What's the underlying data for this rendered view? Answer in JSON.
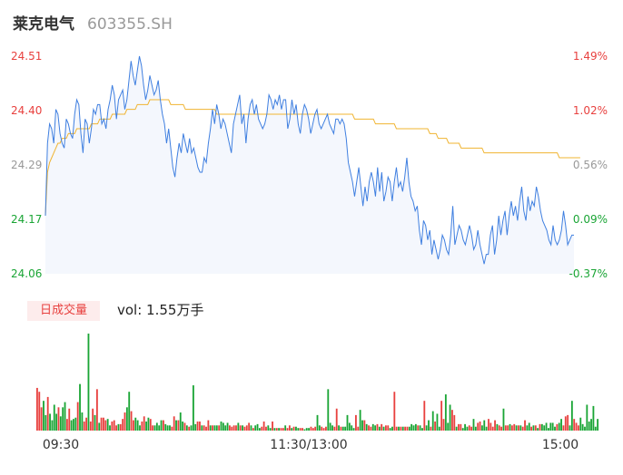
{
  "header": {
    "name": "莱克电气",
    "code": "603355.SH"
  },
  "colors": {
    "up": "#e8413f",
    "down": "#1aa535",
    "neutral": "#999999",
    "price": "#3f7fe0",
    "avg": "#f0b431"
  },
  "volume": {
    "badge": "日成交量",
    "text": "vol: 1.55万手"
  },
  "chart_data": [
    {
      "type": "line",
      "title": "",
      "y_left_ticks": [
        "24.51",
        "24.40",
        "24.29",
        "24.17",
        "24.06"
      ],
      "y_right_ticks": [
        "1.49%",
        "1.02%",
        "0.56%",
        "0.09%",
        "-0.37%"
      ],
      "x_ticks": [
        "09:30",
        "11:30/13:00",
        "15:00"
      ],
      "ylim": [
        24.06,
        24.51
      ],
      "series": [
        {
          "role": "price",
          "values": [
            24.18,
            24.33,
            24.37,
            24.36,
            24.33,
            24.4,
            24.39,
            24.35,
            24.33,
            24.32,
            24.38,
            24.37,
            24.35,
            24.34,
            24.39,
            24.42,
            24.41,
            24.35,
            24.31,
            24.38,
            24.37,
            24.33,
            24.36,
            24.4,
            24.39,
            24.41,
            24.41,
            24.37,
            24.38,
            24.36,
            24.4,
            24.42,
            24.45,
            24.43,
            24.38,
            24.42,
            24.43,
            24.44,
            24.4,
            24.42,
            24.46,
            24.5,
            24.47,
            24.45,
            24.48,
            24.51,
            24.49,
            24.45,
            24.42,
            24.44,
            24.47,
            24.45,
            24.43,
            24.44,
            24.46,
            24.42,
            24.39,
            24.37,
            24.33,
            24.36,
            24.32,
            24.28,
            24.26,
            24.3,
            24.33,
            24.31,
            24.35,
            24.33,
            24.31,
            24.34,
            24.31,
            24.32,
            24.3,
            24.28,
            24.27,
            24.27,
            24.3,
            24.29,
            24.33,
            24.36,
            24.4,
            24.37,
            24.41,
            24.39,
            24.36,
            24.38,
            24.37,
            24.35,
            24.33,
            24.31,
            24.37,
            24.39,
            24.41,
            24.43,
            24.37,
            24.39,
            24.33,
            24.38,
            24.41,
            24.42,
            24.39,
            24.41,
            24.38,
            24.37,
            24.36,
            24.37,
            24.39,
            24.43,
            24.42,
            24.4,
            24.42,
            24.41,
            24.43,
            24.4,
            24.42,
            24.42,
            24.36,
            24.38,
            24.42,
            24.39,
            24.41,
            24.37,
            24.35,
            24.39,
            24.41,
            24.4,
            24.38,
            24.35,
            24.37,
            24.39,
            24.4,
            24.37,
            24.36,
            24.37,
            24.38,
            24.39,
            24.37,
            24.36,
            24.35,
            24.38,
            24.38,
            24.37,
            24.38,
            24.37,
            24.34,
            24.29,
            24.27,
            24.25,
            24.22,
            24.25,
            24.28,
            24.24,
            24.2,
            24.24,
            24.21,
            24.25,
            24.27,
            24.25,
            24.22,
            24.28,
            24.23,
            24.27,
            24.21,
            24.23,
            24.26,
            24.25,
            24.21,
            24.25,
            24.28,
            24.24,
            24.25,
            24.23,
            24.26,
            24.3,
            24.25,
            24.22,
            24.21,
            24.19,
            24.2,
            24.15,
            24.12,
            24.17,
            24.16,
            24.13,
            24.15,
            24.1,
            24.13,
            24.11,
            24.09,
            24.11,
            24.14,
            24.13,
            24.11,
            24.1,
            24.14,
            24.2,
            24.12,
            24.14,
            24.16,
            24.15,
            24.13,
            24.12,
            24.14,
            24.16,
            24.14,
            24.11,
            24.12,
            24.15,
            24.12,
            24.1,
            24.08,
            24.1,
            24.1,
            24.14,
            24.16,
            24.1,
            24.13,
            24.18,
            24.14,
            24.17,
            24.19,
            24.14,
            24.18,
            24.21,
            24.18,
            24.2,
            24.17,
            24.21,
            24.24,
            24.19,
            24.17,
            24.22,
            24.19,
            24.21,
            24.2,
            24.24,
            24.22,
            24.19,
            24.17,
            24.16,
            24.15,
            24.13,
            24.12,
            24.16,
            24.13,
            24.12,
            24.13,
            24.15,
            24.19,
            24.16,
            24.12,
            24.13,
            24.14,
            24.14
          ]
        },
        {
          "role": "average",
          "values": [
            24.18,
            24.27,
            24.29,
            24.3,
            24.31,
            24.32,
            24.33,
            24.33,
            24.34,
            24.34,
            24.34,
            24.35,
            24.35,
            24.35,
            24.35,
            24.36,
            24.36,
            24.36,
            24.36,
            24.36,
            24.36,
            24.36,
            24.37,
            24.37,
            24.37,
            24.37,
            24.38,
            24.38,
            24.38,
            24.38,
            24.38,
            24.38,
            24.39,
            24.39,
            24.39,
            24.39,
            24.39,
            24.39,
            24.39,
            24.4,
            24.4,
            24.4,
            24.4,
            24.4,
            24.41,
            24.41,
            24.41,
            24.41,
            24.41,
            24.41,
            24.42,
            24.42,
            24.42,
            24.42,
            24.42,
            24.42,
            24.42,
            24.42,
            24.42,
            24.42,
            24.41,
            24.41,
            24.41,
            24.41,
            24.41,
            24.41,
            24.41,
            24.4,
            24.4,
            24.4,
            24.4,
            24.4,
            24.4,
            24.4,
            24.4,
            24.4,
            24.4,
            24.4,
            24.4,
            24.4,
            24.4,
            24.4,
            24.39,
            24.39,
            24.39,
            24.39,
            24.39,
            24.39,
            24.39,
            24.39,
            24.39,
            24.39,
            24.39,
            24.39,
            24.39,
            24.39,
            24.39,
            24.39,
            24.39,
            24.39,
            24.39,
            24.39,
            24.39,
            24.39,
            24.39,
            24.39,
            24.39,
            24.39,
            24.39,
            24.39,
            24.39,
            24.39,
            24.39,
            24.39,
            24.39,
            24.39,
            24.39,
            24.39,
            24.39,
            24.39,
            24.39,
            24.39,
            24.39,
            24.39,
            24.39,
            24.39,
            24.39,
            24.39,
            24.39,
            24.39,
            24.39,
            24.39,
            24.39,
            24.39,
            24.39,
            24.39,
            24.39,
            24.39,
            24.39,
            24.39,
            24.39,
            24.39,
            24.39,
            24.39,
            24.39,
            24.39,
            24.39,
            24.39,
            24.38,
            24.38,
            24.38,
            24.38,
            24.38,
            24.38,
            24.38,
            24.38,
            24.38,
            24.38,
            24.37,
            24.37,
            24.37,
            24.37,
            24.37,
            24.37,
            24.37,
            24.37,
            24.37,
            24.37,
            24.36,
            24.36,
            24.36,
            24.36,
            24.36,
            24.36,
            24.36,
            24.36,
            24.36,
            24.36,
            24.36,
            24.36,
            24.36,
            24.36,
            24.36,
            24.36,
            24.35,
            24.35,
            24.35,
            24.35,
            24.34,
            24.34,
            24.34,
            24.34,
            24.34,
            24.33,
            24.33,
            24.33,
            24.33,
            24.33,
            24.33,
            24.32,
            24.32,
            24.32,
            24.32,
            24.32,
            24.32,
            24.32,
            24.32,
            24.32,
            24.32,
            24.32,
            24.31,
            24.31,
            24.31,
            24.31,
            24.31,
            24.31,
            24.31,
            24.31,
            24.31,
            24.31,
            24.31,
            24.31,
            24.31,
            24.31,
            24.31,
            24.31,
            24.31,
            24.31,
            24.31,
            24.31,
            24.31,
            24.31,
            24.31,
            24.31,
            24.31,
            24.31,
            24.31,
            24.31,
            24.31,
            24.31,
            24.31,
            24.31,
            24.31,
            24.31,
            24.31,
            24.31,
            24.3,
            24.3,
            24.3,
            24.3,
            24.3,
            24.3,
            24.3,
            24.3,
            24.3,
            24.3,
            24.3
          ]
        },
        {
          "role": "volume",
          "values": [
            33,
            30,
            18,
            23,
            12,
            26,
            13,
            8,
            20,
            13,
            18,
            11,
            18,
            22,
            9,
            17,
            8,
            9,
            10,
            22,
            36,
            14,
            7,
            10,
            75,
            7,
            17,
            12,
            32,
            6,
            10,
            10,
            8,
            9,
            4,
            7,
            8,
            4,
            5,
            5,
            9,
            14,
            18,
            30,
            15,
            8,
            10,
            8,
            4,
            7,
            11,
            7,
            10,
            9,
            4,
            4,
            6,
            4,
            8,
            8,
            5,
            4,
            4,
            3,
            11,
            8,
            8,
            14,
            7,
            6,
            4,
            3,
            4,
            35,
            5,
            7,
            7,
            4,
            4,
            3,
            8,
            4,
            4,
            4,
            4,
            4,
            7,
            6,
            4,
            6,
            4,
            3,
            4,
            4,
            6,
            4,
            4,
            3,
            4,
            6,
            4,
            2,
            4,
            5,
            2,
            3,
            7,
            3,
            4,
            2,
            7,
            2,
            2,
            2,
            2,
            2,
            4,
            2,
            4,
            2,
            3,
            3,
            2,
            2,
            2,
            1,
            2,
            2,
            3,
            2,
            3,
            12,
            4,
            3,
            2,
            3,
            32,
            6,
            4,
            3,
            17,
            4,
            3,
            3,
            3,
            12,
            6,
            4,
            2,
            12,
            3,
            16,
            8,
            8,
            5,
            4,
            3,
            5,
            4,
            5,
            3,
            5,
            3,
            4,
            4,
            2,
            3,
            30,
            3,
            3,
            3,
            3,
            3,
            3,
            3,
            5,
            4,
            5,
            4,
            4,
            2,
            23,
            4,
            8,
            3,
            15,
            7,
            13,
            3,
            23,
            9,
            28,
            6,
            20,
            16,
            12,
            3,
            5,
            5,
            2,
            5,
            3,
            4,
            3,
            9,
            3,
            6,
            7,
            4,
            8,
            3,
            9,
            6,
            3,
            8,
            5,
            4,
            3,
            17,
            4,
            4,
            5,
            4,
            5,
            4,
            4,
            4,
            3,
            8,
            4,
            6,
            3,
            4,
            4,
            2,
            5,
            5,
            4,
            6,
            2,
            6,
            6,
            3,
            5,
            6,
            9,
            4,
            11,
            12,
            4,
            23,
            9,
            6,
            4,
            10,
            5,
            3,
            20,
            7,
            9,
            19,
            3,
            9
          ]
        }
      ]
    }
  ]
}
